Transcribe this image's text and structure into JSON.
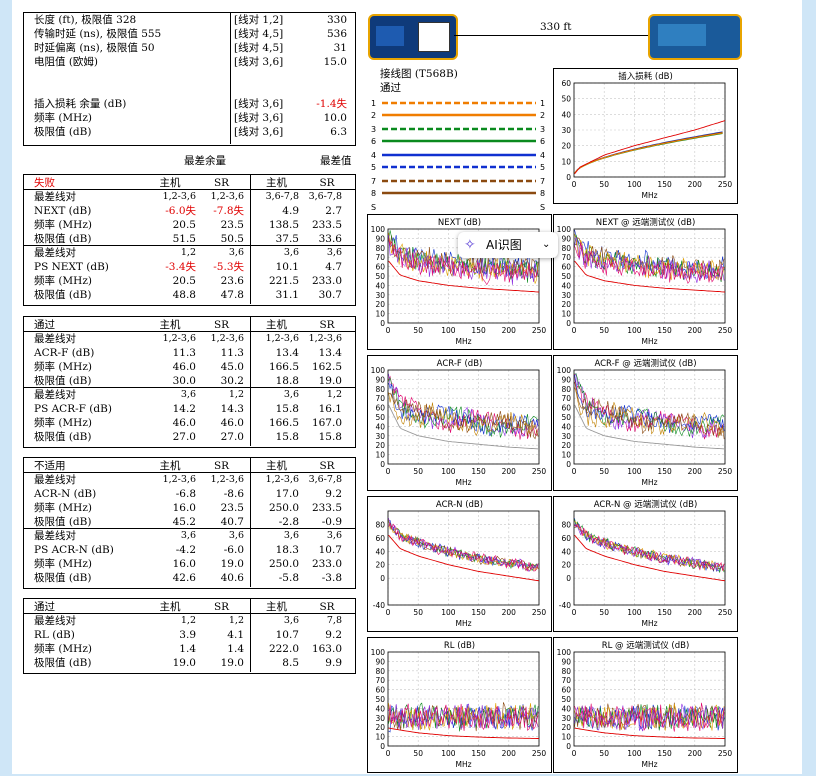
{
  "summary": {
    "rows": [
      {
        "label": "长度 (ft), 极限值 328",
        "pair": "[线对 1,2]",
        "value": "330",
        "fail": false
      },
      {
        "label": "传输时延 (ns), 极限值 555",
        "pair": "[线对 4,5]",
        "value": "536",
        "fail": false
      },
      {
        "label": "时延偏离 (ns), 极限值 50",
        "pair": "[线对 4,5]",
        "value": "31",
        "fail": false
      },
      {
        "label": "电阻值 (欧姆)",
        "pair": "[线对 3,6]",
        "value": "15.0",
        "fail": false
      },
      {
        "label": "插入损耗 余量 (dB)",
        "pair": "[线对 3,6]",
        "value": "-1.4失",
        "fail": true
      },
      {
        "label": "频率 (MHz)",
        "pair": "[线对 3,6]",
        "value": "10.0",
        "fail": false
      },
      {
        "label": "极限值 (dB)",
        "pair": "[线对 3,6]",
        "value": "6.3",
        "fail": false
      }
    ]
  },
  "headers": {
    "worst_margin": "最差余量",
    "worst_value": "最差值"
  },
  "blocks": [
    {
      "status": "失败",
      "status_fail": true,
      "cols": [
        "主机",
        "SR",
        "主机",
        "SR"
      ],
      "groups": [
        {
          "rows": [
            {
              "label": "最差线对",
              "v": [
                "1,2-3,6",
                "1,2-3,6",
                "3,6-7,8",
                "3,6-7,8"
              ],
              "small": true
            },
            {
              "label": "NEXT (dB)",
              "v": [
                "-6.0失",
                "-7.8失",
                "4.9",
                "2.7"
              ],
              "fail": [
                true,
                true,
                false,
                false
              ]
            },
            {
              "label": "频率 (MHz)",
              "v": [
                "20.5",
                "23.5",
                "138.5",
                "233.5"
              ]
            },
            {
              "label": "极限值 (dB)",
              "v": [
                "51.5",
                "50.5",
                "37.5",
                "33.6"
              ]
            }
          ]
        },
        {
          "rows": [
            {
              "label": "最差线对",
              "v": [
                "1,2",
                "3,6",
                "3,6",
                "3,6"
              ],
              "small": true
            },
            {
              "label": "PS NEXT (dB)",
              "v": [
                "-3.4失",
                "-5.3失",
                "10.1",
                "4.7"
              ],
              "fail": [
                true,
                true,
                false,
                false
              ]
            },
            {
              "label": "频率 (MHz)",
              "v": [
                "20.5",
                "23.6",
                "221.5",
                "233.0"
              ]
            },
            {
              "label": "极限值 (dB)",
              "v": [
                "48.8",
                "47.8",
                "31.1",
                "30.7"
              ]
            }
          ]
        }
      ]
    },
    {
      "status": "通过",
      "status_fail": false,
      "cols": [
        "主机",
        "SR",
        "主机",
        "SR"
      ],
      "groups": [
        {
          "rows": [
            {
              "label": "最差线对",
              "v": [
                "1,2-3,6",
                "1,2-3,6",
                "1,2-3,6",
                "1,2-3,6"
              ],
              "small": true
            },
            {
              "label": "ACR-F (dB)",
              "v": [
                "11.3",
                "11.3",
                "13.4",
                "13.4"
              ]
            },
            {
              "label": "频率 (MHz)",
              "v": [
                "46.0",
                "45.0",
                "166.5",
                "162.5"
              ]
            },
            {
              "label": "极限值 (dB)",
              "v": [
                "30.0",
                "30.2",
                "18.8",
                "19.0"
              ]
            }
          ]
        },
        {
          "rows": [
            {
              "label": "最差线对",
              "v": [
                "3,6",
                "1,2",
                "3,6",
                "1,2"
              ],
              "small": true
            },
            {
              "label": "PS ACR-F (dB)",
              "v": [
                "14.2",
                "14.3",
                "15.8",
                "16.1"
              ]
            },
            {
              "label": "频率 (MHz)",
              "v": [
                "46.0",
                "46.0",
                "166.5",
                "167.0"
              ]
            },
            {
              "label": "极限值 (dB)",
              "v": [
                "27.0",
                "27.0",
                "15.8",
                "15.8"
              ]
            }
          ]
        }
      ]
    },
    {
      "status": "不适用",
      "status_fail": false,
      "cols": [
        "主机",
        "SR",
        "主机",
        "SR"
      ],
      "groups": [
        {
          "rows": [
            {
              "label": "最差线对",
              "v": [
                "1,2-3,6",
                "1,2-3,6",
                "1,2-3,6",
                "3,6-7,8"
              ],
              "small": true
            },
            {
              "label": "ACR-N (dB)",
              "v": [
                "-6.8",
                "-8.6",
                "17.0",
                "9.2"
              ]
            },
            {
              "label": "频率 (MHz)",
              "v": [
                "16.0",
                "23.5",
                "250.0",
                "233.5"
              ]
            },
            {
              "label": "极限值 (dB)",
              "v": [
                "45.2",
                "40.7",
                "-2.8",
                "-0.9"
              ]
            }
          ]
        },
        {
          "rows": [
            {
              "label": "最差线对",
              "v": [
                "3,6",
                "3,6",
                "3,6",
                "3,6"
              ],
              "small": true
            },
            {
              "label": "PS ACR-N (dB)",
              "v": [
                "-4.2",
                "-6.0",
                "18.3",
                "10.7"
              ]
            },
            {
              "label": "频率 (MHz)",
              "v": [
                "16.0",
                "19.0",
                "250.0",
                "233.0"
              ]
            },
            {
              "label": "极限值 (dB)",
              "v": [
                "42.6",
                "40.6",
                "-5.8",
                "-3.8"
              ]
            }
          ]
        }
      ]
    },
    {
      "status": "通过",
      "status_fail": false,
      "cols": [
        "主机",
        "SR",
        "主机",
        "SR"
      ],
      "groups": [
        {
          "rows": [
            {
              "label": "最差线对",
              "v": [
                "1,2",
                "1,2",
                "3,6",
                "7,8"
              ],
              "small": true
            },
            {
              "label": "RL (dB)",
              "v": [
                "3.9",
                "4.1",
                "10.7",
                "9.2"
              ]
            },
            {
              "label": "频率 (MHz)",
              "v": [
                "1.4",
                "1.4",
                "222.0",
                "163.0"
              ]
            },
            {
              "label": "极限值 (dB)",
              "v": [
                "19.0",
                "19.0",
                "8.5",
                "9.9"
              ]
            }
          ]
        }
      ]
    }
  ],
  "cable": {
    "length": "330 ft"
  },
  "wiremap": {
    "title": "接线图 (T568B)",
    "status": "通过",
    "left_pins": [
      "1",
      "2",
      "3",
      "6",
      "4",
      "5",
      "7",
      "8",
      "S"
    ],
    "right_pins": [
      "1",
      "2",
      "3",
      "6",
      "4",
      "5",
      "7",
      "8",
      "S"
    ],
    "pair_colors": {
      "orange": "#f07d00",
      "green": "#0a8a1e",
      "blue": "#1030d0",
      "brown": "#8b4a10"
    }
  },
  "ai_button": {
    "label": "AI识图",
    "icon": "sparkle-icon",
    "chevron": "chevron-down-icon"
  },
  "chart_data": [
    {
      "type": "line",
      "title": "插入损耗 (dB)",
      "xlabel": "MHz",
      "ylabel": "",
      "xlim": [
        0,
        250
      ],
      "ylim": [
        0,
        60
      ],
      "xticks": [
        0,
        50,
        100,
        150,
        200,
        250
      ],
      "yticks": [
        0,
        10,
        20,
        30,
        40,
        50,
        60
      ],
      "grid": true,
      "style": "insertion",
      "series": [
        {
          "color": "#e00000",
          "x": [
            1,
            10,
            50,
            100,
            150,
            200,
            250
          ],
          "y": [
            2,
            6.3,
            14,
            20,
            25,
            30,
            36
          ]
        }
      ]
    },
    {
      "type": "line",
      "title": "NEXT (dB)",
      "xlabel": "MHz",
      "xlim": [
        0,
        250
      ],
      "ylim": [
        0,
        100
      ],
      "xticks": [
        0,
        50,
        100,
        150,
        200,
        250
      ],
      "yticks": [
        0,
        10,
        20,
        30,
        40,
        50,
        60,
        70,
        80,
        90,
        100
      ],
      "grid": true,
      "style": "next",
      "seed": 11,
      "series": [
        {
          "color": "#e00000",
          "x": [
            1,
            20,
            50,
            100,
            150,
            200,
            250
          ],
          "y": [
            66,
            51,
            45,
            40,
            37,
            35,
            33
          ]
        }
      ]
    },
    {
      "type": "line",
      "title": "NEXT @ 远端测试仪 (dB)",
      "xlabel": "MHz",
      "xlim": [
        0,
        250
      ],
      "ylim": [
        0,
        100
      ],
      "xticks": [
        0,
        50,
        100,
        150,
        200,
        250
      ],
      "yticks": [
        0,
        10,
        20,
        30,
        40,
        50,
        60,
        70,
        80,
        90,
        100
      ],
      "grid": true,
      "style": "next",
      "seed": 23,
      "series": [
        {
          "color": "#e00000",
          "x": [
            1,
            20,
            50,
            100,
            150,
            200,
            250
          ],
          "y": [
            66,
            51,
            45,
            40,
            37,
            35,
            33
          ]
        }
      ]
    },
    {
      "type": "line",
      "title": "ACR-F (dB)",
      "xlabel": "MHz",
      "xlim": [
        0,
        250
      ],
      "ylim": [
        0,
        100
      ],
      "xticks": [
        0,
        50,
        100,
        150,
        200,
        250
      ],
      "yticks": [
        0,
        10,
        20,
        30,
        40,
        50,
        60,
        70,
        80,
        90,
        100
      ],
      "grid": true,
      "style": "acrf",
      "seed": 37,
      "series": [
        {
          "color": "#999999",
          "x": [
            1,
            20,
            50,
            100,
            150,
            200,
            250
          ],
          "y": [
            63,
            38,
            30,
            24,
            21,
            18,
            16
          ]
        }
      ]
    },
    {
      "type": "line",
      "title": "ACR-F @ 远端测试仪 (dB)",
      "xlabel": "MHz",
      "xlim": [
        0,
        250
      ],
      "ylim": [
        0,
        100
      ],
      "xticks": [
        0,
        50,
        100,
        150,
        200,
        250
      ],
      "yticks": [
        0,
        10,
        20,
        30,
        40,
        50,
        60,
        70,
        80,
        90,
        100
      ],
      "grid": true,
      "style": "acrf",
      "seed": 41,
      "series": [
        {
          "color": "#999999",
          "x": [
            1,
            20,
            50,
            100,
            150,
            200,
            250
          ],
          "y": [
            63,
            38,
            30,
            24,
            21,
            18,
            16
          ]
        }
      ]
    },
    {
      "type": "line",
      "title": "ACR-N (dB)",
      "xlabel": "MHz",
      "xlim": [
        0,
        250
      ],
      "ylim": [
        -40,
        100
      ],
      "xticks": [
        0,
        50,
        100,
        150,
        200,
        250
      ],
      "yticks": [
        -40,
        0,
        20,
        40,
        60,
        80
      ],
      "grid": true,
      "style": "acrn",
      "seed": 53,
      "series": [
        {
          "color": "#e00000",
          "x": [
            1,
            20,
            50,
            100,
            150,
            200,
            250
          ],
          "y": [
            64,
            44,
            33,
            20,
            10,
            3,
            -4
          ]
        }
      ]
    },
    {
      "type": "line",
      "title": "ACR-N @ 远端测试仪 (dB)",
      "xlabel": "MHz",
      "xlim": [
        0,
        250
      ],
      "ylim": [
        -40,
        100
      ],
      "xticks": [
        0,
        50,
        100,
        150,
        200,
        250
      ],
      "yticks": [
        -40,
        0,
        20,
        40,
        60,
        80
      ],
      "grid": true,
      "style": "acrn",
      "seed": 67,
      "series": [
        {
          "color": "#e00000",
          "x": [
            1,
            20,
            50,
            100,
            150,
            200,
            250
          ],
          "y": [
            64,
            44,
            33,
            20,
            10,
            3,
            -4
          ]
        }
      ]
    },
    {
      "type": "line",
      "title": "RL (dB)",
      "xlabel": "MHz",
      "xlim": [
        0,
        250
      ],
      "ylim": [
        0,
        100
      ],
      "xticks": [
        0,
        50,
        100,
        150,
        200,
        250
      ],
      "yticks": [
        0,
        10,
        20,
        30,
        40,
        50,
        60,
        70,
        80,
        90,
        100
      ],
      "grid": true,
      "style": "rl",
      "seed": 71,
      "series": [
        {
          "color": "#e00000",
          "x": [
            1,
            20,
            50,
            100,
            150,
            200,
            250
          ],
          "y": [
            19,
            17,
            14,
            11,
            9.5,
            8.5,
            8
          ]
        }
      ]
    },
    {
      "type": "line",
      "title": "RL @ 远端测试仪 (dB)",
      "xlabel": "MHz",
      "xlim": [
        0,
        250
      ],
      "ylim": [
        0,
        100
      ],
      "xticks": [
        0,
        50,
        100,
        150,
        200,
        250
      ],
      "yticks": [
        0,
        10,
        20,
        30,
        40,
        50,
        60,
        70,
        80,
        90,
        100
      ],
      "grid": true,
      "style": "rl",
      "seed": 83,
      "series": [
        {
          "color": "#e00000",
          "x": [
            1,
            20,
            50,
            100,
            150,
            200,
            250
          ],
          "y": [
            19,
            17,
            14,
            11,
            9.5,
            8.5,
            8
          ]
        }
      ]
    }
  ]
}
